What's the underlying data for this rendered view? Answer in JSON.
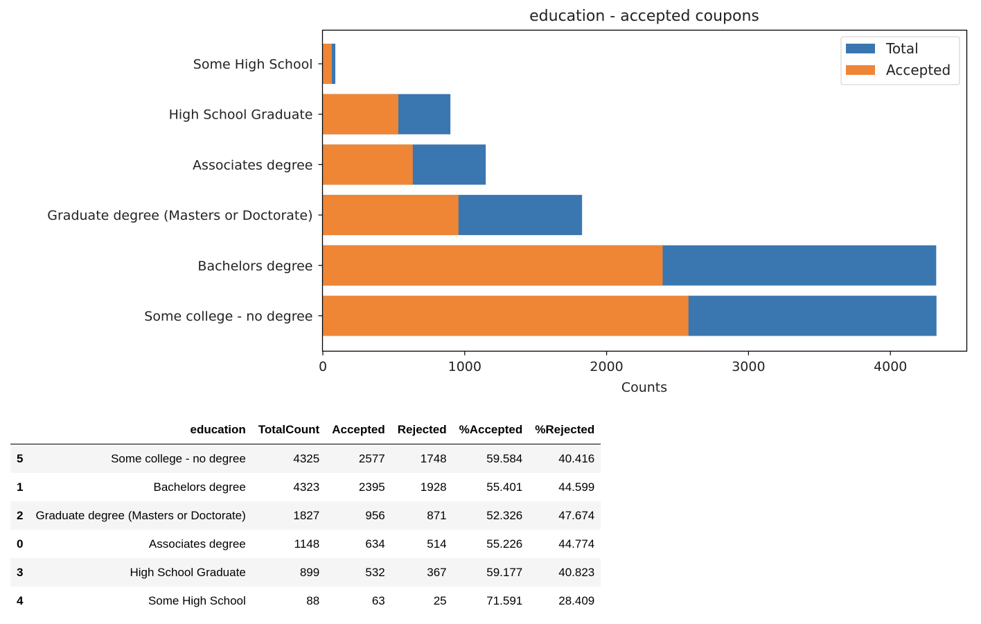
{
  "chart_data": {
    "type": "bar",
    "orientation": "horizontal",
    "title": "education - accepted coupons",
    "xlabel": "Counts",
    "ylabel": "",
    "xlim": [
      0,
      4550
    ],
    "xticks": [
      0,
      1000,
      2000,
      3000,
      4000
    ],
    "categories": [
      "Some High School",
      "High School Graduate",
      "Associates degree",
      "Graduate degree (Masters or Doctorate)",
      "Bachelors degree",
      "Some college - no degree"
    ],
    "series": [
      {
        "name": "Total",
        "color": "#3a76af",
        "values": [
          88,
          899,
          1148,
          1827,
          4323,
          4325
        ]
      },
      {
        "name": "Accepted",
        "color": "#ef8636",
        "values": [
          63,
          532,
          634,
          956,
          2395,
          2577
        ]
      }
    ],
    "legend": "top-right",
    "grid": false
  },
  "table": {
    "columns": [
      "",
      "education",
      "TotalCount",
      "Accepted",
      "Rejected",
      "%Accepted",
      "%Rejected"
    ],
    "rows": [
      [
        "5",
        "Some college - no degree",
        "4325",
        "2577",
        "1748",
        "59.584",
        "40.416"
      ],
      [
        "1",
        "Bachelors degree",
        "4323",
        "2395",
        "1928",
        "55.401",
        "44.599"
      ],
      [
        "2",
        "Graduate degree (Masters or Doctorate)",
        "1827",
        "956",
        "871",
        "52.326",
        "47.674"
      ],
      [
        "0",
        "Associates degree",
        "1148",
        "634",
        "514",
        "55.226",
        "44.774"
      ],
      [
        "3",
        "High School Graduate",
        "899",
        "532",
        "367",
        "59.177",
        "40.823"
      ],
      [
        "4",
        "Some High School",
        "88",
        "63",
        "25",
        "71.591",
        "28.409"
      ]
    ]
  }
}
